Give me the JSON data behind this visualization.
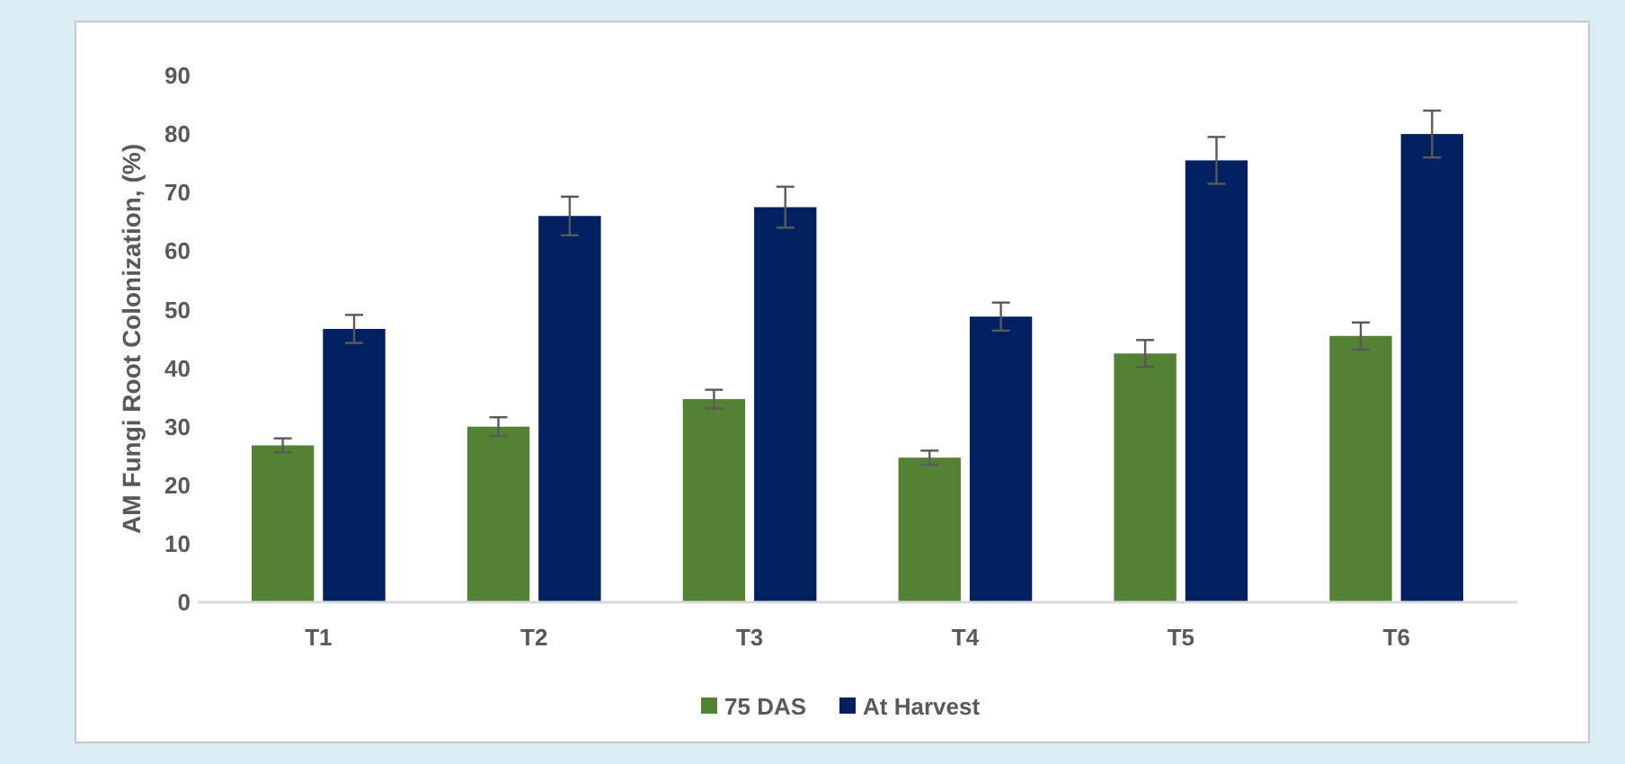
{
  "chart_data": {
    "type": "bar",
    "ylabel": "AM Fungi Root Colonization, (%)",
    "categories": [
      "T1",
      "T2",
      "T3",
      "T4",
      "T5",
      "T6"
    ],
    "series": [
      {
        "name": "75 DAS",
        "color": "#548235",
        "values": [
          26.8,
          30,
          34.7,
          24.7,
          42.5,
          45.5
        ],
        "errors": [
          1.2,
          1.6,
          1.6,
          1.2,
          2.3,
          2.3
        ]
      },
      {
        "name": "At Harvest",
        "color": "#002060",
        "values": [
          46.7,
          66,
          67.5,
          48.8,
          75.5,
          80
        ],
        "errors": [
          2.4,
          3.3,
          3.5,
          2.4,
          4,
          4
        ]
      }
    ],
    "ylim": [
      0,
      90
    ],
    "yticks": [
      0,
      10,
      20,
      30,
      40,
      50,
      60,
      70,
      80,
      90
    ],
    "grid": false,
    "legend": "bottom"
  }
}
